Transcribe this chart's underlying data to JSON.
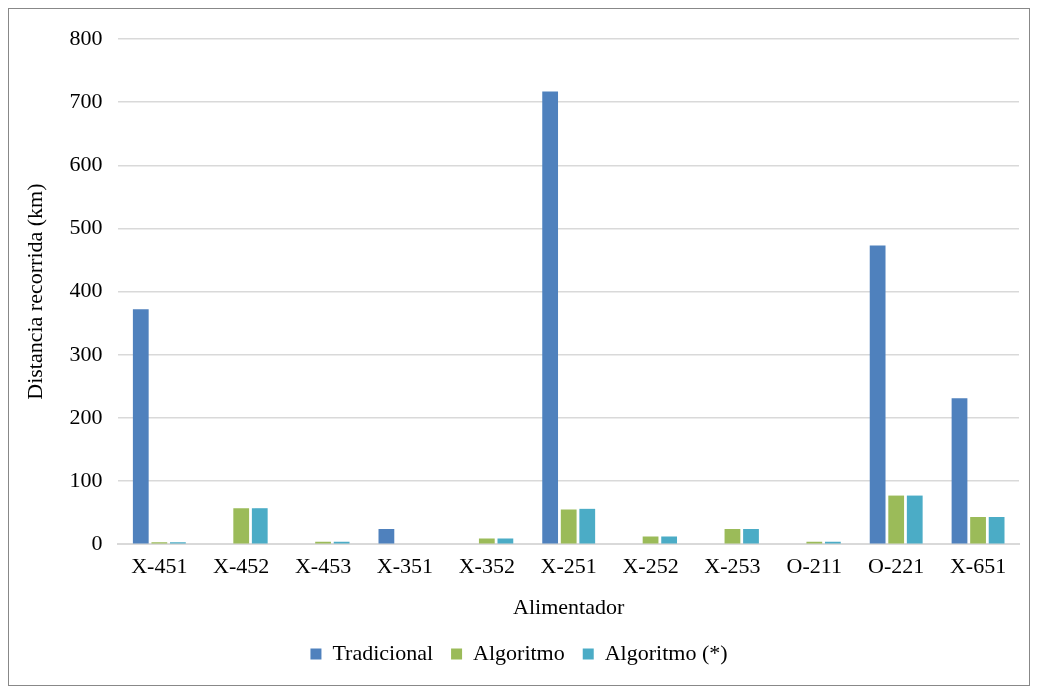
{
  "chart_data": {
    "type": "bar",
    "xlabel": "Alimentador",
    "ylabel": "Distancia recorrida (km)",
    "categories": [
      "X-451",
      "X-452",
      "X-453",
      "X-351",
      "X-352",
      "X-251",
      "X-252",
      "X-253",
      "O-211",
      "O-221",
      "X-651"
    ],
    "series": [
      {
        "name": "Tradicional",
        "color": "#4f81bd",
        "values": [
          372,
          0,
          0,
          24,
          0,
          717,
          0,
          0,
          0,
          473,
          231
        ]
      },
      {
        "name": "Algoritmo",
        "color": "#9bbb59",
        "values": [
          3,
          57,
          4,
          0,
          9,
          55,
          12,
          24,
          4,
          77,
          43
        ]
      },
      {
        "name": "Algoritmo (*)",
        "color": "#4bacc6",
        "values": [
          3,
          57,
          4,
          0,
          9,
          56,
          12,
          24,
          4,
          77,
          43
        ]
      }
    ],
    "ylim": [
      0,
      800
    ],
    "yticks": [
      0,
      100,
      200,
      300,
      400,
      500,
      600,
      700,
      800
    ],
    "grid": "y",
    "legend": "bottom"
  }
}
